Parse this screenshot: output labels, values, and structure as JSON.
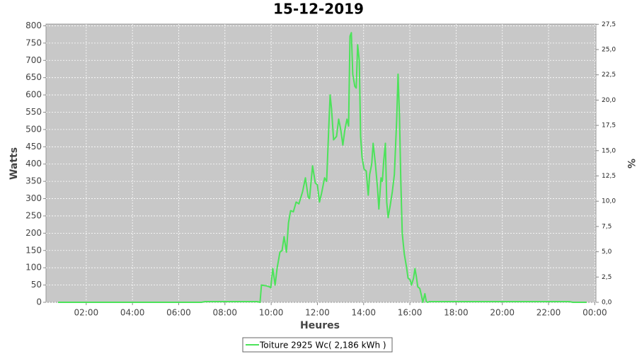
{
  "chart_data": {
    "type": "line",
    "title": "15-12-2019",
    "x_label": "Heures",
    "y_label": "Watts",
    "y2_label": "%",
    "x": [
      0.78,
      6.98,
      7.14,
      9.4,
      9.52,
      9.58,
      9.77,
      9.92,
      9.98,
      10.07,
      10.17,
      10.26,
      10.38,
      10.47,
      10.56,
      10.66,
      10.75,
      10.84,
      10.96,
      11.08,
      11.2,
      11.36,
      11.48,
      11.6,
      11.66,
      11.79,
      11.91,
      12.0,
      12.09,
      12.18,
      12.31,
      12.4,
      12.49,
      12.55,
      12.61,
      12.7,
      12.83,
      12.92,
      13.01,
      13.1,
      13.19,
      13.28,
      13.35,
      13.41,
      13.47,
      13.53,
      13.62,
      13.68,
      13.74,
      13.81,
      13.87,
      13.93,
      14.02,
      14.11,
      14.2,
      14.26,
      14.35,
      14.41,
      14.51,
      14.6,
      14.66,
      14.75,
      14.81,
      14.87,
      14.94,
      15.0,
      15.06,
      15.15,
      15.24,
      15.33,
      15.43,
      15.49,
      15.55,
      15.61,
      15.67,
      15.76,
      15.86,
      15.92,
      16.01,
      16.07,
      16.16,
      16.22,
      16.28,
      16.34,
      16.43,
      16.5,
      16.56,
      16.65,
      16.71,
      16.77,
      16.85,
      22.9,
      23.05,
      23.65
    ],
    "series": [
      {
        "name": "Toiture 2925 Wc( 2,186 kWh )",
        "color": "#4ce35a",
        "values": [
          0,
          0,
          2,
          2,
          0,
          50,
          48,
          45,
          42,
          98,
          50,
          100,
          145,
          150,
          190,
          145,
          230,
          265,
          262,
          290,
          285,
          320,
          360,
          305,
          300,
          395,
          345,
          340,
          290,
          315,
          360,
          350,
          500,
          600,
          560,
          470,
          480,
          530,
          500,
          455,
          500,
          530,
          510,
          770,
          780,
          660,
          625,
          620,
          745,
          700,
          480,
          420,
          385,
          380,
          310,
          370,
          400,
          460,
          400,
          330,
          270,
          360,
          350,
          410,
          460,
          290,
          245,
          280,
          320,
          370,
          530,
          660,
          540,
          350,
          200,
          140,
          100,
          70,
          65,
          50,
          70,
          98,
          75,
          45,
          40,
          20,
          0,
          25,
          2,
          0,
          2,
          2,
          0,
          0
        ]
      }
    ],
    "xlim": [
      0.26,
      24.05
    ],
    "xticks": [
      {
        "value": 2,
        "label": "02:00"
      },
      {
        "value": 4,
        "label": "04:00"
      },
      {
        "value": 6,
        "label": "06:00"
      },
      {
        "value": 8,
        "label": "08:00"
      },
      {
        "value": 10,
        "label": "10:00"
      },
      {
        "value": 12,
        "label": "12:00"
      },
      {
        "value": 14,
        "label": "14:00"
      },
      {
        "value": 16,
        "label": "16:00"
      },
      {
        "value": 18,
        "label": "18:00"
      },
      {
        "value": 20,
        "label": "20:00"
      },
      {
        "value": 22,
        "label": "22:00"
      },
      {
        "value": 24,
        "label": "00:00"
      }
    ],
    "ylim": [
      0,
      805
    ],
    "yticks": [
      0,
      50,
      100,
      150,
      200,
      250,
      300,
      350,
      400,
      450,
      500,
      550,
      600,
      650,
      700,
      750,
      800
    ],
    "y2lim": [
      0,
      27.52
    ],
    "y2ticks": [
      {
        "value": 0,
        "label": "0,0"
      },
      {
        "value": 2.5,
        "label": "2,5"
      },
      {
        "value": 5,
        "label": "5,0"
      },
      {
        "value": 7.5,
        "label": "7,5"
      },
      {
        "value": 10,
        "label": "10,0"
      },
      {
        "value": 12.5,
        "label": "12,5"
      },
      {
        "value": 15,
        "label": "15,0"
      },
      {
        "value": 17.5,
        "label": "17,5"
      },
      {
        "value": 20,
        "label": "20,0"
      },
      {
        "value": 22.5,
        "label": "22,5"
      },
      {
        "value": 25,
        "label": "25,0"
      },
      {
        "value": 27.5,
        "label": "27,5"
      }
    ],
    "grid": true,
    "legend": "bottom"
  }
}
